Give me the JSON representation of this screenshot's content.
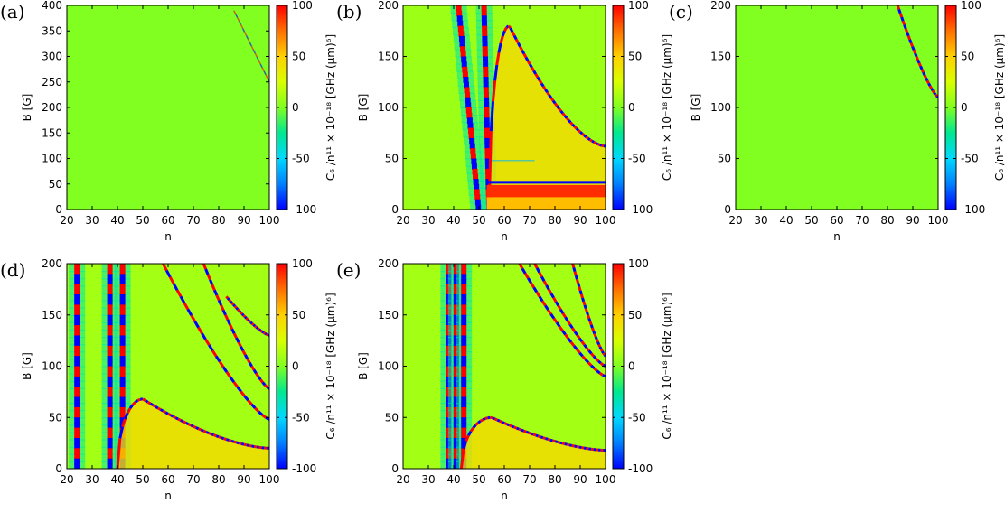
{
  "figure": {
    "colorbar_label": "C₆ /n¹¹ × 10⁻¹⁸ [GHz (µm)⁶]",
    "colorbar_ticks": [
      "100",
      "50",
      "0",
      "-50",
      "-100"
    ]
  },
  "chart_data": [
    {
      "id": "a",
      "panel_label": "(a)",
      "type": "heatmap",
      "xlabel": "n",
      "ylabel": "B [G]",
      "xlim": [
        20,
        100
      ],
      "ylim": [
        0,
        400
      ],
      "xticks": [
        "20",
        "30",
        "40",
        "50",
        "60",
        "70",
        "80",
        "90",
        "100"
      ],
      "yticks": [
        "0",
        "50",
        "100",
        "150",
        "200",
        "250",
        "300",
        "350",
        "400"
      ],
      "zlim": [
        -100,
        100
      ],
      "background_value": 0,
      "features": [
        {
          "kind": "faint_resonance",
          "n": [
            86,
            100
          ],
          "B": [
            390,
            250
          ]
        }
      ]
    },
    {
      "id": "b",
      "panel_label": "(b)",
      "type": "heatmap",
      "xlabel": "n",
      "ylabel": "B [G]",
      "xlim": [
        20,
        100
      ],
      "ylim": [
        0,
        200
      ],
      "xticks": [
        "20",
        "30",
        "40",
        "50",
        "60",
        "70",
        "80",
        "90",
        "100"
      ],
      "yticks": [
        "0",
        "50",
        "100",
        "150",
        "200"
      ],
      "zlim": [
        -100,
        100
      ],
      "background_value": 8,
      "features": [
        {
          "kind": "vertical_resonance",
          "n_top": 42,
          "n_bottom": 50
        },
        {
          "kind": "vertical_resonance",
          "n_top": 52,
          "n_bottom": 54
        },
        {
          "kind": "arc_resonance",
          "n_start": 54,
          "n_peak": 62,
          "B_peak": 180,
          "n_end": 100,
          "B_end": 62
        },
        {
          "kind": "low_band",
          "n": [
            53,
            100
          ],
          "B_center": 18,
          "value": 90
        },
        {
          "kind": "faint_line",
          "n": [
            55,
            72
          ],
          "B": 48
        }
      ]
    },
    {
      "id": "c",
      "panel_label": "(c)",
      "type": "heatmap",
      "xlabel": "n",
      "ylabel": "B [G]",
      "xlim": [
        20,
        100
      ],
      "ylim": [
        0,
        200
      ],
      "xticks": [
        "20",
        "30",
        "40",
        "50",
        "60",
        "70",
        "80",
        "90",
        "100"
      ],
      "yticks": [
        "0",
        "50",
        "100",
        "150",
        "200"
      ],
      "zlim": [
        -100,
        100
      ],
      "background_value": 0,
      "features": [
        {
          "kind": "diagonal_resonance",
          "n": [
            84,
            100
          ],
          "B": [
            200,
            110
          ]
        }
      ]
    },
    {
      "id": "d",
      "panel_label": "(d)",
      "type": "heatmap",
      "xlabel": "n",
      "ylabel": "B [G]",
      "xlim": [
        20,
        100
      ],
      "ylim": [
        0,
        200
      ],
      "xticks": [
        "20",
        "30",
        "40",
        "50",
        "60",
        "70",
        "80",
        "90",
        "100"
      ],
      "yticks": [
        "0",
        "50",
        "100",
        "150",
        "200"
      ],
      "zlim": [
        -100,
        100
      ],
      "background_value": 10,
      "features": [
        {
          "kind": "vertical_resonance",
          "n": 24
        },
        {
          "kind": "vertical_resonance",
          "n": 37
        },
        {
          "kind": "vertical_resonance",
          "n": 42
        },
        {
          "kind": "arc_resonance",
          "n_start": 40,
          "n_peak": 50,
          "B_peak": 68,
          "n_end": 100,
          "B_end": 20
        },
        {
          "kind": "diagonal_resonance",
          "n": [
            58,
            100
          ],
          "B": [
            200,
            48
          ]
        },
        {
          "kind": "diagonal_resonance",
          "n": [
            74,
            100
          ],
          "B": [
            200,
            78
          ]
        },
        {
          "kind": "diagonal_resonance",
          "n": [
            83,
            100
          ],
          "B": [
            168,
            130
          ]
        }
      ]
    },
    {
      "id": "e",
      "panel_label": "(e)",
      "type": "heatmap",
      "xlabel": "n",
      "ylabel": "B [G]",
      "xlim": [
        20,
        100
      ],
      "ylim": [
        0,
        200
      ],
      "xticks": [
        "20",
        "30",
        "40",
        "50",
        "60",
        "70",
        "80",
        "90",
        "100"
      ],
      "yticks": [
        "0",
        "50",
        "100",
        "150",
        "200"
      ],
      "zlim": [
        -100,
        100
      ],
      "background_value": 10,
      "features": [
        {
          "kind": "vertical_resonance",
          "n": 38
        },
        {
          "kind": "vertical_resonance",
          "n": 41
        },
        {
          "kind": "vertical_resonance",
          "n": 44
        },
        {
          "kind": "arc_resonance",
          "n_start": 43,
          "n_peak": 55,
          "B_peak": 50,
          "n_end": 100,
          "B_end": 18
        },
        {
          "kind": "diagonal_resonance",
          "n": [
            66,
            100
          ],
          "B": [
            200,
            90
          ]
        },
        {
          "kind": "diagonal_resonance",
          "n": [
            72,
            100
          ],
          "B": [
            200,
            100
          ]
        },
        {
          "kind": "diagonal_resonance",
          "n": [
            87,
            100
          ],
          "B": [
            200,
            110
          ]
        }
      ]
    }
  ]
}
